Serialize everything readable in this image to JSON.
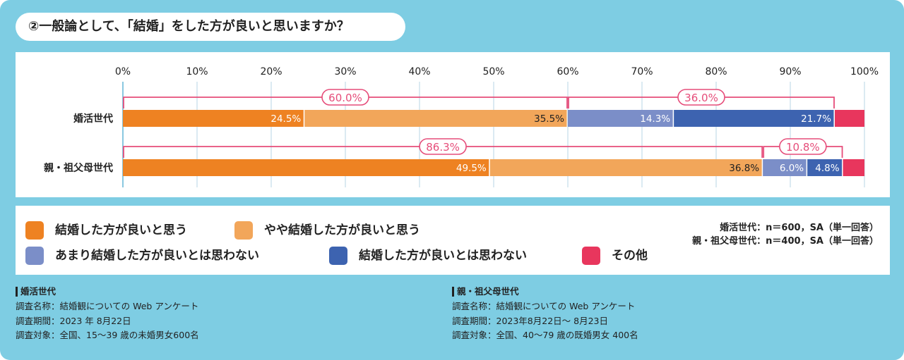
{
  "title": "②一般論として、「結婚」をした方が良いと思いますか？",
  "colors": {
    "strong_yes": "#ee8222",
    "yes": "#f2a65a",
    "no": "#7b8ec8",
    "strong_no": "#3d63b0",
    "other": "#e8365d",
    "bracket": "#e64d7a",
    "background": "#7ecde3"
  },
  "chart_data": {
    "type": "bar",
    "orientation": "horizontal",
    "stacked": true,
    "xlim": [
      0,
      100
    ],
    "x_ticks": [
      "0%",
      "10%",
      "20%",
      "30%",
      "40%",
      "50%",
      "60%",
      "70%",
      "80%",
      "90%",
      "100%"
    ],
    "categories": [
      "婚活世代",
      "親・祖父母世代"
    ],
    "series": [
      {
        "name": "結婚した方が良いと思う",
        "values": [
          24.5,
          49.5
        ],
        "labels": [
          "24.5%",
          "49.5%"
        ]
      },
      {
        "name": "やや結婚した方が良いと思う",
        "values": [
          35.5,
          36.8
        ],
        "labels": [
          "35.5%",
          "36.8%"
        ]
      },
      {
        "name": "あまり結婚した方が良いとは思わない",
        "values": [
          14.3,
          6.0
        ],
        "labels": [
          "14.3%",
          "6.0%"
        ]
      },
      {
        "name": "結婚した方が良いとは思わない",
        "values": [
          21.7,
          4.8
        ],
        "labels": [
          "21.7%",
          "4.8%"
        ]
      },
      {
        "name": "その他",
        "values": [
          4.0,
          2.9
        ],
        "labels": [
          "",
          ""
        ]
      }
    ],
    "brackets": [
      [
        {
          "from": 0,
          "to": 60.0,
          "label": "60.0%"
        },
        {
          "from": 60.0,
          "to": 96.0,
          "label": "36.0%"
        }
      ],
      [
        {
          "from": 0,
          "to": 86.3,
          "label": "86.3%"
        },
        {
          "from": 86.3,
          "to": 97.1,
          "label": "10.8%"
        }
      ]
    ]
  },
  "legend": [
    {
      "label": "結婚した方が良いと思う",
      "color_key": "strong_yes"
    },
    {
      "label": "やや結婚した方が良いと思う",
      "color_key": "yes"
    },
    {
      "label": "あまり結婚した方が良いとは思わない",
      "color_key": "no"
    },
    {
      "label": "結婚した方が良いとは思わない",
      "color_key": "strong_no"
    },
    {
      "label": "その他",
      "color_key": "other"
    }
  ],
  "sample_notes": {
    "line1": "婚活世代：n＝600，SA（単一回答）",
    "line2": "親・祖父母世代：n＝400，SA（単一回答）"
  },
  "sources": {
    "left": {
      "heading": "婚活世代",
      "name": "調査名称：結婚観についての Web アンケート",
      "period": "調査期間：2023 年 8月22日",
      "target": "調査対象：全国、15～39 歳の未婚男女600名"
    },
    "right": {
      "heading": "親・祖父母世代",
      "name": "調査名称：結婚観についての Web アンケート",
      "period": "調査期間：2023年8月22日～ 8月23日",
      "target": "調査対象：全国、40～79 歳の既婚男女 400名"
    }
  }
}
